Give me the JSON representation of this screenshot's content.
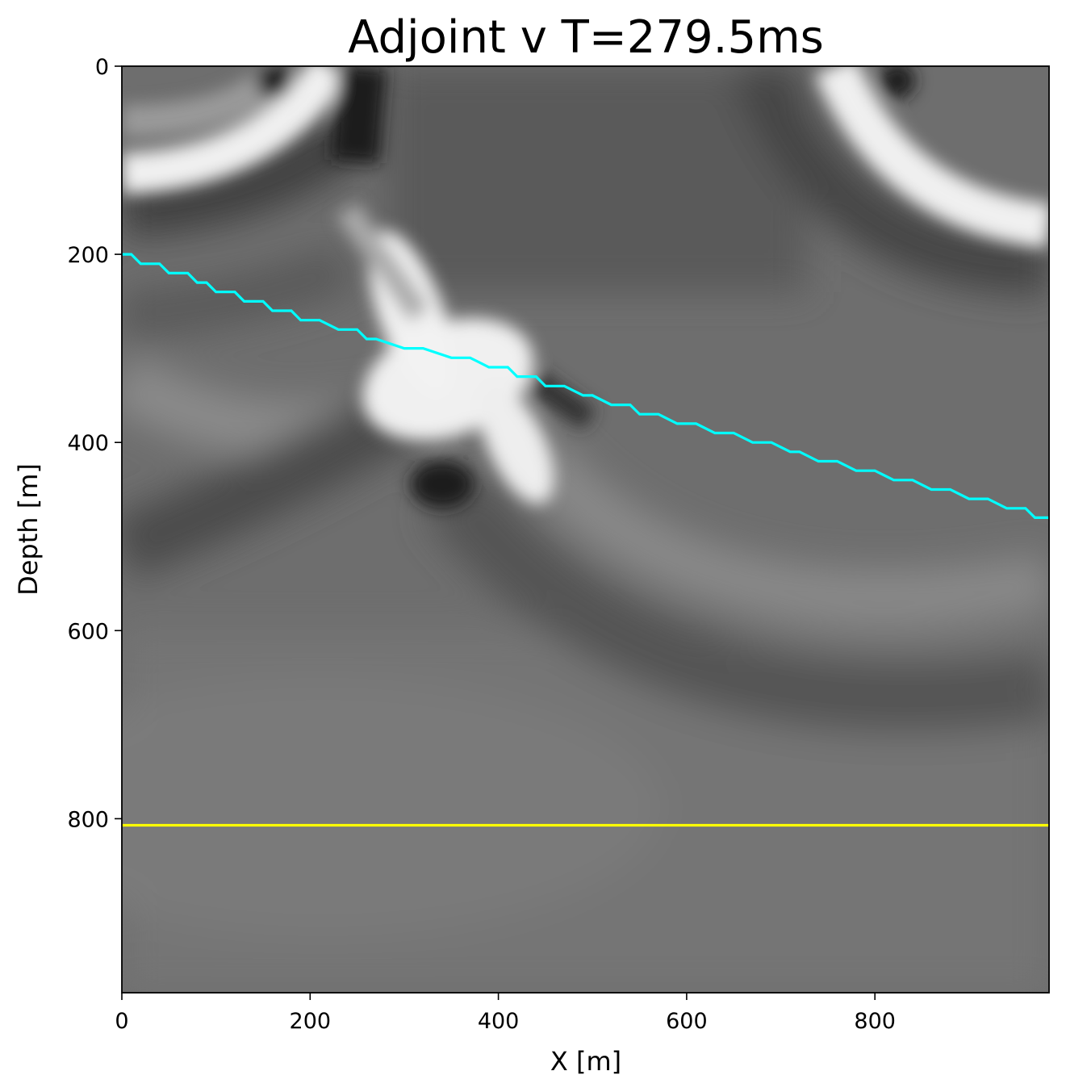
{
  "chart_data": {
    "type": "heatmap",
    "title": "Adjoint v T=279.5ms",
    "xlabel": "X [m]",
    "ylabel": "Depth [m]",
    "xlim": [
      0,
      985
    ],
    "ylim": [
      985,
      0
    ],
    "y_inverted": true,
    "colormap": "grayscale",
    "x_ticks": [
      0,
      200,
      400,
      600,
      800
    ],
    "y_ticks": [
      0,
      200,
      400,
      600,
      800
    ],
    "x_tick_labels": [
      "0",
      "200",
      "400",
      "600",
      "800"
    ],
    "y_tick_labels": [
      "0",
      "200",
      "400",
      "600",
      "800"
    ],
    "grid": false,
    "series": [
      {
        "color": "#00ffff",
        "style": "staircase",
        "x": [
          0,
          10,
          20,
          40,
          50,
          70,
          80,
          90,
          100,
          120,
          130,
          150,
          160,
          180,
          190,
          210,
          230,
          250,
          260,
          270,
          300,
          320,
          350,
          370,
          390,
          410,
          420,
          440,
          450,
          470,
          490,
          500,
          520,
          540,
          550,
          570,
          590,
          610,
          630,
          650,
          670,
          690,
          710,
          720,
          740,
          760,
          780,
          800,
          820,
          840,
          860,
          880,
          900,
          920,
          940,
          960,
          970,
          985
        ],
        "y": [
          200,
          200,
          210,
          210,
          220,
          220,
          230,
          230,
          240,
          240,
          250,
          250,
          260,
          260,
          270,
          270,
          280,
          280,
          290,
          290,
          300,
          300,
          310,
          310,
          320,
          320,
          330,
          330,
          340,
          340,
          350,
          350,
          360,
          360,
          370,
          370,
          380,
          380,
          390,
          390,
          400,
          400,
          410,
          410,
          420,
          420,
          430,
          430,
          440,
          440,
          450,
          450,
          460,
          460,
          470,
          470,
          480,
          480
        ]
      },
      {
        "color": "#ffff00",
        "style": "line",
        "x": [
          0,
          985
        ],
        "y": [
          807,
          807
        ]
      }
    ]
  }
}
